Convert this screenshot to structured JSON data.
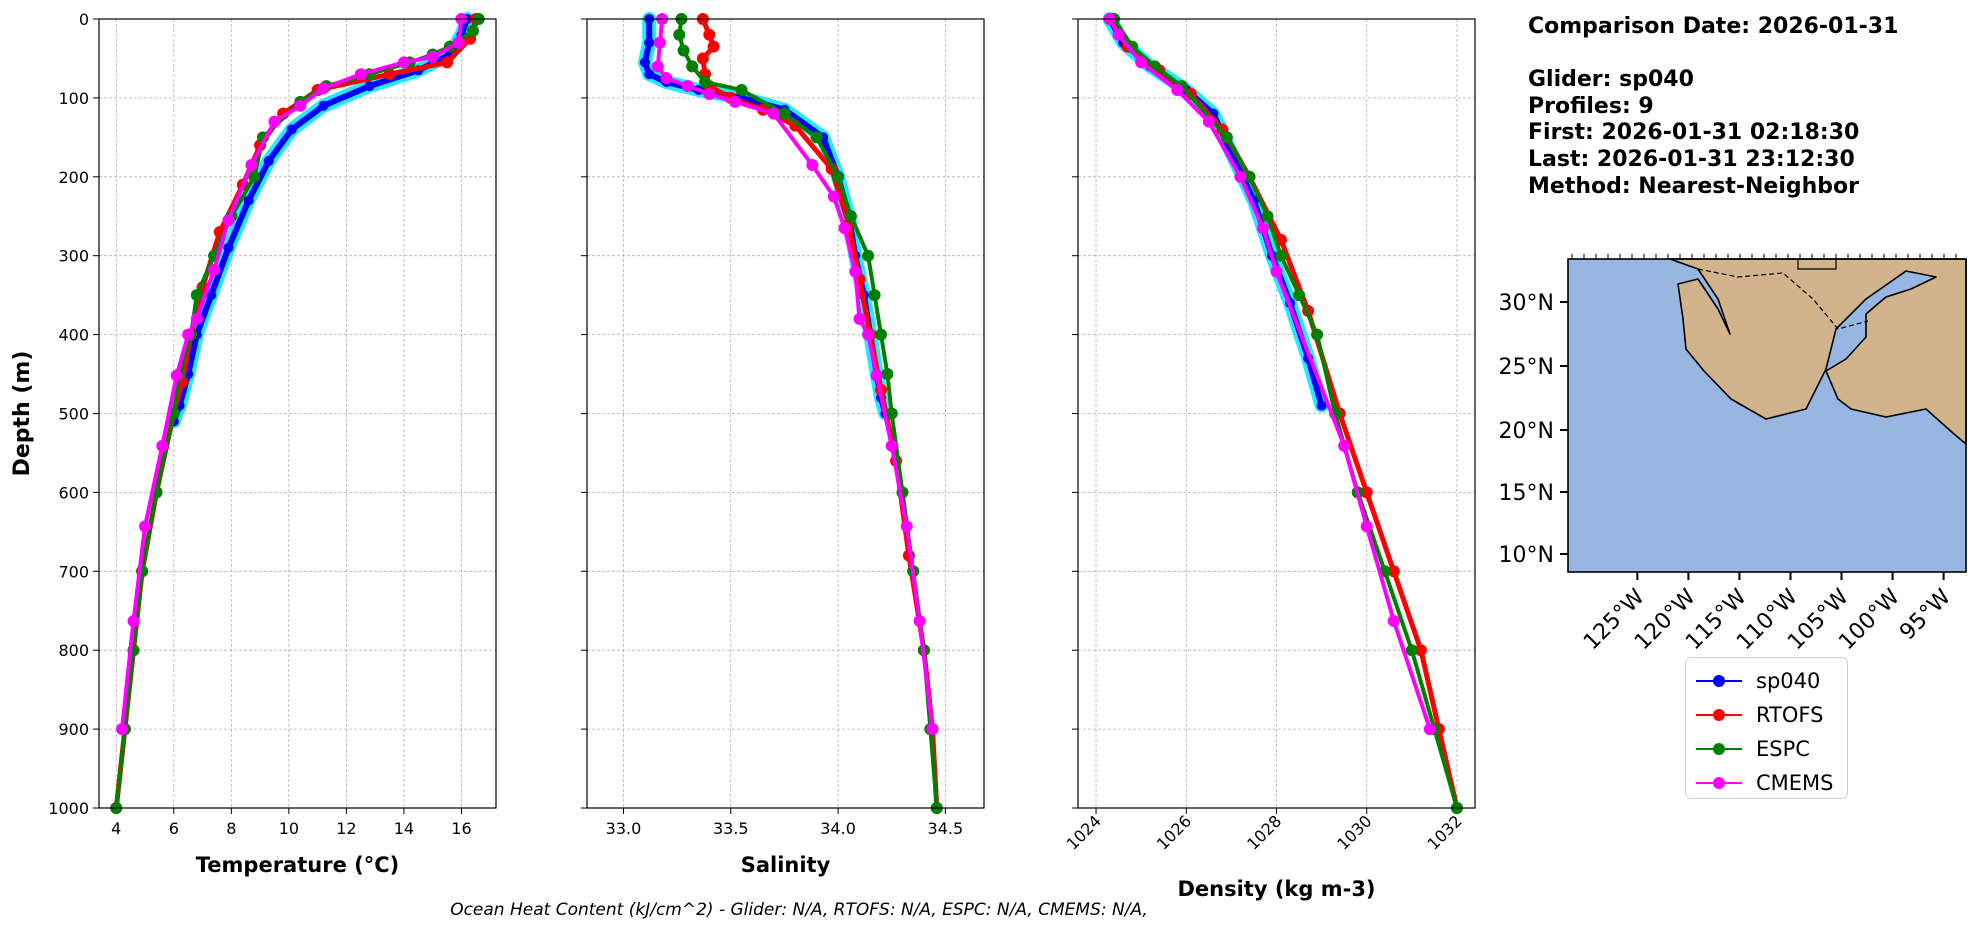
{
  "chart_data": [
    {
      "type": "line",
      "xlabel": "Temperature (°C)",
      "ylabel": "Depth (m)",
      "xlim": [
        3.4,
        17.2
      ],
      "ylim": [
        1000,
        0
      ],
      "xticks": [
        "4",
        "6",
        "8",
        "10",
        "12",
        "14",
        "16"
      ],
      "yticks": [
        "0",
        "100",
        "200",
        "300",
        "400",
        "500",
        "600",
        "700",
        "800",
        "900",
        "1000"
      ],
      "grid": true,
      "series": [
        {
          "name": "sp040",
          "color": "#0000ff",
          "x": [
            16.2,
            16.0,
            15.6,
            14.5,
            12.8,
            11.2,
            10.1,
            9.3,
            8.6,
            7.9,
            7.3,
            6.8,
            6.5,
            6.2,
            6.0
          ],
          "y": [
            0,
            20,
            45,
            65,
            85,
            110,
            140,
            180,
            230,
            290,
            350,
            400,
            450,
            490,
            510
          ]
        },
        {
          "name": "RTOFS",
          "color": "#ff0000",
          "x": [
            16.5,
            16.3,
            15.5,
            13.5,
            11.0,
            9.8,
            9.0,
            8.4,
            7.6,
            7.0,
            6.6,
            6.3,
            6.0,
            5.4,
            4.9,
            4.6,
            4.3,
            4.0
          ],
          "y": [
            0,
            25,
            55,
            70,
            90,
            120,
            160,
            210,
            270,
            340,
            400,
            460,
            500,
            600,
            700,
            800,
            900,
            1000
          ]
        },
        {
          "name": "ESPC",
          "color": "#008000",
          "x": [
            16.6,
            16.4,
            15.6,
            15.0,
            14.2,
            12.8,
            11.3,
            10.4,
            9.1,
            8.8,
            8.0,
            7.4,
            6.8,
            6.6,
            6.2,
            6.0,
            5.4,
            4.9,
            4.6,
            4.3,
            4.0
          ],
          "y": [
            0,
            15,
            35,
            45,
            55,
            70,
            85,
            105,
            150,
            200,
            250,
            300,
            350,
            400,
            450,
            500,
            600,
            700,
            800,
            900,
            1000
          ]
        },
        {
          "name": "CMEMS",
          "color": "#ff00ff",
          "x": [
            16.0,
            15.9,
            15.0,
            14.0,
            12.5,
            11.2,
            10.4,
            9.5,
            8.7,
            7.9,
            7.4,
            6.8,
            6.5,
            6.1,
            5.6,
            5.0,
            4.6,
            4.2
          ],
          "y": [
            0,
            30,
            48,
            55,
            70,
            88,
            110,
            130,
            185,
            255,
            318,
            380,
            400,
            452,
            541,
            643,
            763,
            900
          ]
        }
      ]
    },
    {
      "type": "line",
      "xlabel": "Salinity",
      "xlim": [
        32.83,
        34.68
      ],
      "ylim": [
        1000,
        0
      ],
      "xticks": [
        "33.0",
        "33.5",
        "34.0",
        "34.5"
      ],
      "grid": true,
      "series": [
        {
          "name": "sp040",
          "color": "#0000ff",
          "x": [
            33.12,
            33.12,
            33.1,
            33.12,
            33.2,
            33.35,
            33.55,
            33.75,
            33.93,
            34.0,
            34.05,
            34.08,
            34.12,
            34.15,
            34.18,
            34.2,
            34.22
          ],
          "y": [
            0,
            30,
            55,
            70,
            80,
            90,
            100,
            115,
            150,
            200,
            250,
            300,
            350,
            400,
            450,
            480,
            500
          ]
        },
        {
          "name": "RTOFS",
          "color": "#ff0000",
          "x": [
            33.37,
            33.4,
            33.42,
            33.37,
            33.38,
            33.4,
            33.5,
            33.65,
            33.8,
            33.97,
            34.05,
            34.1,
            34.15,
            34.2,
            34.27,
            34.33,
            34.4,
            34.44,
            34.46
          ],
          "y": [
            0,
            20,
            35,
            50,
            70,
            85,
            100,
            115,
            135,
            190,
            260,
            330,
            400,
            470,
            560,
            680,
            800,
            900,
            1000
          ]
        },
        {
          "name": "ESPC",
          "color": "#008000",
          "x": [
            33.27,
            33.26,
            33.28,
            33.32,
            33.38,
            33.55,
            33.75,
            33.9,
            34.0,
            34.06,
            34.14,
            34.17,
            34.2,
            34.23,
            34.25,
            34.3,
            34.35,
            34.4,
            34.43,
            34.46
          ],
          "y": [
            0,
            20,
            40,
            60,
            80,
            90,
            120,
            150,
            200,
            250,
            300,
            350,
            400,
            450,
            500,
            600,
            700,
            800,
            900,
            1000
          ]
        },
        {
          "name": "CMEMS",
          "color": "#ff00ff",
          "x": [
            33.18,
            33.17,
            33.16,
            33.2,
            33.3,
            33.4,
            33.52,
            33.7,
            33.88,
            33.98,
            34.03,
            34.08,
            34.1,
            34.14,
            34.18,
            34.25,
            34.32,
            34.38,
            34.44
          ],
          "y": [
            0,
            30,
            60,
            75,
            85,
            95,
            105,
            120,
            185,
            225,
            265,
            320,
            380,
            400,
            452,
            541,
            643,
            763,
            900
          ]
        }
      ]
    },
    {
      "type": "line",
      "xlabel": "Density (kg m-3)",
      "xlim": [
        1023.6,
        1032.4
      ],
      "ylim": [
        1000,
        0
      ],
      "xticks": [
        "1024",
        "1026",
        "1028",
        "1030",
        "1032"
      ],
      "grid": true,
      "series": [
        {
          "name": "sp040",
          "color": "#0000ff",
          "x": [
            1024.3,
            1024.6,
            1025.2,
            1026.0,
            1026.6,
            1027.0,
            1027.5,
            1027.9,
            1028.3,
            1028.7,
            1029.0
          ],
          "y": [
            0,
            30,
            60,
            90,
            120,
            170,
            230,
            300,
            360,
            430,
            490
          ]
        },
        {
          "name": "RTOFS",
          "color": "#ff0000",
          "x": [
            1024.3,
            1024.7,
            1025.4,
            1026.1,
            1026.8,
            1027.4,
            1028.1,
            1028.7,
            1029.4,
            1030.0,
            1030.6,
            1031.2,
            1031.6,
            1032.0
          ],
          "y": [
            0,
            35,
            65,
            95,
            140,
            200,
            280,
            370,
            500,
            600,
            700,
            800,
            900,
            1000
          ]
        },
        {
          "name": "ESPC",
          "color": "#008000",
          "x": [
            1024.4,
            1024.8,
            1025.3,
            1025.9,
            1026.9,
            1027.4,
            1027.8,
            1028.1,
            1028.5,
            1028.9,
            1029.3,
            1029.8,
            1030.4,
            1031.0,
            1031.5,
            1032.0
          ],
          "y": [
            0,
            35,
            60,
            85,
            150,
            200,
            250,
            300,
            350,
            400,
            500,
            600,
            700,
            800,
            900,
            1000
          ]
        },
        {
          "name": "CMEMS",
          "color": "#ff00ff",
          "x": [
            1024.3,
            1024.5,
            1025.0,
            1025.8,
            1026.5,
            1027.2,
            1027.7,
            1028.0,
            1029.5,
            1030.0,
            1030.6,
            1031.4
          ],
          "y": [
            0,
            20,
            55,
            90,
            130,
            200,
            265,
            320,
            541,
            643,
            763,
            900
          ]
        }
      ]
    }
  ],
  "info": {
    "comparison_date": "Comparison Date: 2026-01-31",
    "glider": "Glider: sp040",
    "profiles": "Profiles: 9",
    "first": "First: 2026-01-31 02:18:30",
    "last": "Last: 2026-01-31 23:12:30",
    "method": "Method: Nearest-Neighbor"
  },
  "map": {
    "lat_labels": [
      "30°N",
      "25°N",
      "20°N",
      "15°N",
      "10°N"
    ],
    "lon_labels": [
      "125°W",
      "120°W",
      "115°W",
      "110°W",
      "105°W",
      "100°W",
      "95°W"
    ],
    "ocean_color": "#97b6e1",
    "land_color": "#d2b48c"
  },
  "legend": [
    {
      "label": "sp040",
      "color": "#0000ff"
    },
    {
      "label": "RTOFS",
      "color": "#ff0000"
    },
    {
      "label": "ESPC",
      "color": "#008000"
    },
    {
      "label": "CMEMS",
      "color": "#ff00ff"
    }
  ],
  "footer": "Ocean Heat Content (kJ/cm^2) - Glider: N/A,  RTOFS: N/A,  ESPC: N/A,  CMEMS: N/A,"
}
